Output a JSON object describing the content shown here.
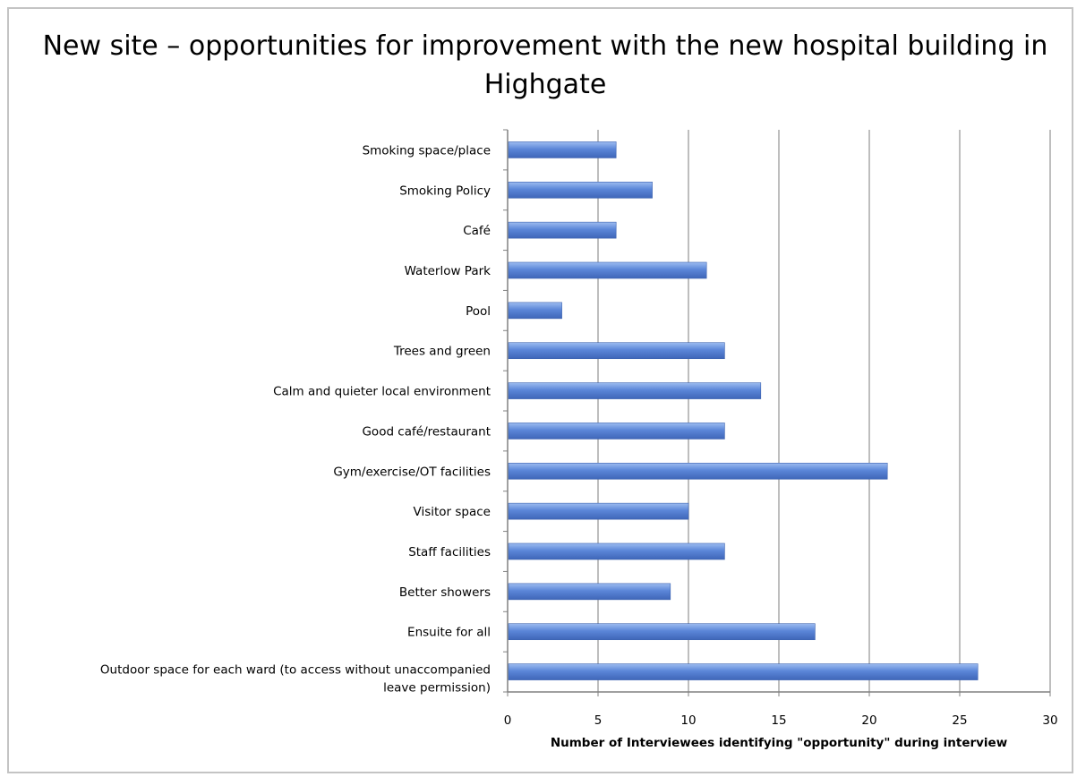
{
  "chart_data": {
    "type": "bar",
    "orientation": "horizontal",
    "title": "New site – opportunities for improvement with the new hospital building in Highgate",
    "xlabel": "Number of Interviewees identifying \"opportunity\" during interview",
    "ylabel": "",
    "xlim": [
      0,
      30
    ],
    "xticks": [
      0,
      5,
      10,
      15,
      20,
      25,
      30
    ],
    "grid": "vertical",
    "bar_color": "#5b86d8",
    "categories": [
      "Smoking space/place",
      "Smoking Policy",
      "Café",
      "Waterlow Park",
      "Pool",
      "Trees and green",
      "Calm and quieter local environment",
      "Good café/restaurant",
      "Gym/exercise/OT facilities",
      "Visitor space",
      "Staff facilities",
      "Better showers",
      "Ensuite for all",
      "Outdoor space for each ward (to access without unaccompanied leave permission)"
    ],
    "category_lines": [
      [
        "Smoking space/place"
      ],
      [
        "Smoking Policy"
      ],
      [
        "Café"
      ],
      [
        "Waterlow Park"
      ],
      [
        "Pool"
      ],
      [
        "Trees and green"
      ],
      [
        "Calm and quieter local environment"
      ],
      [
        "Good café/restaurant"
      ],
      [
        "Gym/exercise/OT facilities"
      ],
      [
        "Visitor space"
      ],
      [
        "Staff facilities"
      ],
      [
        "Better showers"
      ],
      [
        "Ensuite for all"
      ],
      [
        "Outdoor space for each ward (to access without unaccompanied",
        "leave permission)"
      ]
    ],
    "values": [
      6,
      8,
      6,
      11,
      3,
      12,
      14,
      12,
      21,
      10,
      12,
      9,
      17,
      26
    ]
  }
}
